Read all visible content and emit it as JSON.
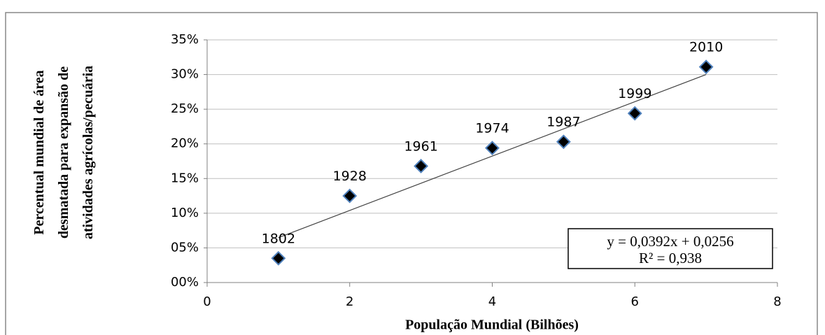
{
  "chart_data": {
    "type": "scatter",
    "x_label": "População Mundial  (Bilhões)",
    "y_label": [
      "Percentual mundial de área",
      "desmatada para expansão de",
      "atividades agrícolas/pecuária"
    ],
    "x": [
      1,
      2,
      3,
      4,
      5,
      6,
      7
    ],
    "values": [
      3.5,
      12.5,
      16.8,
      19.4,
      20.3,
      24.4,
      31.1
    ],
    "point_labels": [
      "1802",
      "1928",
      "1961",
      "1974",
      "1987",
      "1999",
      "2010"
    ],
    "color": "#000000",
    "edge_color": "#4f81bd",
    "xlim": [
      0,
      8
    ],
    "xticks": [
      0,
      2,
      4,
      6,
      8
    ],
    "ylim": [
      0,
      35
    ],
    "yticks": [
      {
        "value": 0,
        "label": "00%"
      },
      {
        "value": 5,
        "label": "05%"
      },
      {
        "value": 10,
        "label": "10%"
      },
      {
        "value": 15,
        "label": "15%"
      },
      {
        "value": 20,
        "label": "20%"
      },
      {
        "value": 25,
        "label": "25%"
      },
      {
        "value": 30,
        "label": "30%"
      },
      {
        "value": 35,
        "label": "35%"
      }
    ],
    "grid": true,
    "trendline": {
      "equation": "y = 0,0392x + 0,0256",
      "r_squared": "R² = 0,938",
      "slope": 3.92,
      "intercept": 2.56
    }
  }
}
